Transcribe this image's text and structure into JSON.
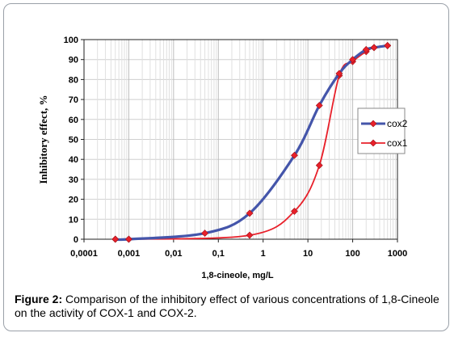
{
  "chart_data": {
    "type": "line",
    "xlabel": "1,8-cineole, mg/L",
    "ylabel": "Inhibitory effect, %",
    "x_scale": "log",
    "xlim": [
      0.0001,
      1000
    ],
    "ylim": [
      0,
      100
    ],
    "x_tick_labels": [
      "0,0001",
      "0,001",
      "0,01",
      "0,1",
      "1",
      "10",
      "100",
      "1000"
    ],
    "y_tick_labels": [
      "0",
      "10",
      "20",
      "30",
      "40",
      "50",
      "60",
      "70",
      "80",
      "90",
      "100"
    ],
    "grid": true,
    "legend_position": "right",
    "series": [
      {
        "name": "cox2",
        "color": "#4455aa",
        "x": [
          0.0005,
          0.001,
          0.05,
          0.5,
          5,
          18,
          50,
          100,
          200,
          300,
          600
        ],
        "y": [
          0,
          0,
          3,
          13,
          42,
          67,
          83,
          90,
          95,
          96,
          97
        ]
      },
      {
        "name": "cox1",
        "color": "#e8202a",
        "x": [
          0.0005,
          0.001,
          0.5,
          5,
          18,
          50,
          100,
          200,
          300,
          600
        ],
        "y": [
          0,
          0,
          2,
          14,
          37,
          82,
          89,
          94,
          96,
          97
        ]
      }
    ]
  },
  "caption": {
    "label": "Figure 2:",
    "text": " Comparison of the inhibitory effect of various concentrations of 1,8-Cineole on the activity of COX-1 and COX-2."
  }
}
